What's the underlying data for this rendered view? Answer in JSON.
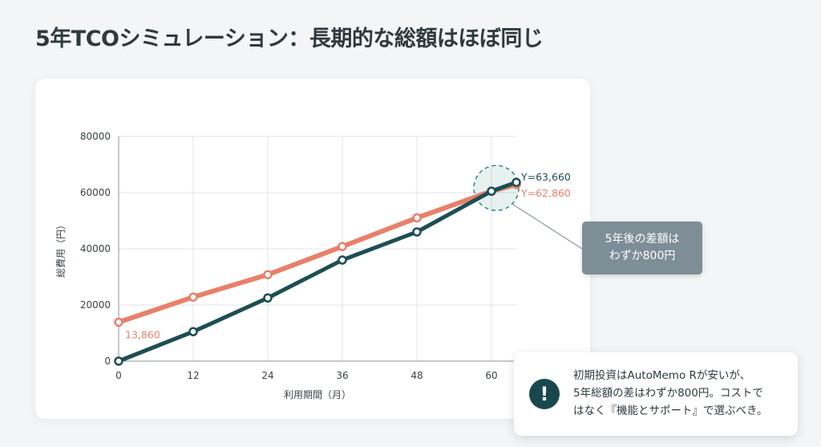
{
  "title": "5年TCOシミュレーション：長期的な総額はほぼ同じ",
  "chart_data": {
    "type": "line",
    "xlabel": "利用期間（月）",
    "ylabel": "総費用（円）",
    "x": [
      0,
      12,
      24,
      36,
      48,
      60,
      64
    ],
    "xticks": [
      "0",
      "12",
      "24",
      "36",
      "48",
      "60"
    ],
    "yticks": [
      "0",
      "20000",
      "40000",
      "60000",
      "80000"
    ],
    "xlim": [
      0,
      64
    ],
    "ylim": [
      0,
      80000
    ],
    "grid": true,
    "series": [
      {
        "color": "#e8806a",
        "values": [
          13860,
          22800,
          30800,
          40800,
          51000,
          60500,
          62860
        ],
        "start_label": "13,860",
        "end_label": "Y=62,860"
      },
      {
        "color": "#1d4e54",
        "values": [
          0,
          10500,
          22500,
          36000,
          46000,
          60500,
          63660
        ],
        "end_label": "Y=63,660"
      }
    ],
    "highlight_color": "#2f8a82"
  },
  "callout": {
    "text": "5年後の差額は\nわずか800円"
  },
  "info": {
    "icon": "!",
    "icon_name": "exclamation-icon",
    "text": "初期投資はAutoMemo Rが安いが、\n5年総額の差はわずか800円。コストで\nはなく『機能とサポート』で選ぶべき。"
  }
}
